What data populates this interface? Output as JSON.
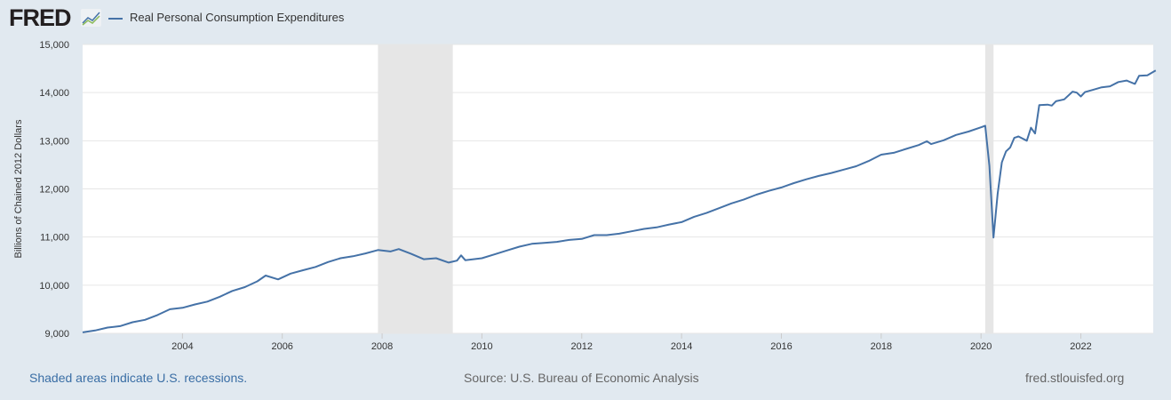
{
  "header": {
    "logo": "FRED",
    "legend_label": "Real Personal Consumption Expenditures"
  },
  "footer": {
    "recession_note": "Shaded areas indicate U.S. recessions.",
    "source": "Source: U.S. Bureau of Economic Analysis",
    "site": "fred.stlouisfed.org"
  },
  "colors": {
    "line": "#4572a7",
    "recession": "#e6e6e6",
    "background": "#e1e9f0"
  },
  "chart_data": {
    "type": "line",
    "title": "Real Personal Consumption Expenditures",
    "ylabel": "Billions of Chained 2012 Dollars",
    "xlabel": "",
    "ylim": [
      9000,
      15000
    ],
    "xlim": [
      2002.0,
      2023.45
    ],
    "yticks": [
      9000,
      10000,
      11000,
      12000,
      13000,
      14000,
      15000
    ],
    "ytick_labels": [
      "9,000",
      "10,000",
      "11,000",
      "12,000",
      "13,000",
      "14,000",
      "15,000"
    ],
    "xticks": [
      2004,
      2006,
      2008,
      2010,
      2012,
      2014,
      2016,
      2018,
      2020,
      2022
    ],
    "xtick_labels": [
      "2004",
      "2006",
      "2008",
      "2010",
      "2012",
      "2014",
      "2016",
      "2018",
      "2020",
      "2022"
    ],
    "grid": true,
    "recessions": [
      [
        "2007-12",
        "2009-06"
      ],
      [
        "2020-02",
        "2020-04"
      ]
    ],
    "series": [
      {
        "name": "Real Personal Consumption Expenditures",
        "points": [
          [
            "2002-01",
            9020
          ],
          [
            "2002-04",
            9060
          ],
          [
            "2002-07",
            9120
          ],
          [
            "2002-10",
            9150
          ],
          [
            "2003-01",
            9230
          ],
          [
            "2003-04",
            9280
          ],
          [
            "2003-07",
            9380
          ],
          [
            "2003-10",
            9500
          ],
          [
            "2004-01",
            9530
          ],
          [
            "2004-04",
            9600
          ],
          [
            "2004-07",
            9660
          ],
          [
            "2004-10",
            9760
          ],
          [
            "2005-01",
            9880
          ],
          [
            "2005-04",
            9960
          ],
          [
            "2005-07",
            10080
          ],
          [
            "2005-09",
            10200
          ],
          [
            "2005-12",
            10120
          ],
          [
            "2006-03",
            10240
          ],
          [
            "2006-06",
            10310
          ],
          [
            "2006-09",
            10380
          ],
          [
            "2006-12",
            10480
          ],
          [
            "2007-03",
            10560
          ],
          [
            "2007-06",
            10600
          ],
          [
            "2007-09",
            10660
          ],
          [
            "2007-12",
            10730
          ],
          [
            "2008-03",
            10700
          ],
          [
            "2008-05",
            10750
          ],
          [
            "2008-08",
            10650
          ],
          [
            "2008-11",
            10540
          ],
          [
            "2009-02",
            10560
          ],
          [
            "2009-05",
            10470
          ],
          [
            "2009-07",
            10510
          ],
          [
            "2009-08",
            10620
          ],
          [
            "2009-09",
            10520
          ],
          [
            "2010-01",
            10560
          ],
          [
            "2010-04",
            10640
          ],
          [
            "2010-07",
            10720
          ],
          [
            "2010-10",
            10800
          ],
          [
            "2011-01",
            10860
          ],
          [
            "2011-04",
            10880
          ],
          [
            "2011-07",
            10900
          ],
          [
            "2011-10",
            10940
          ],
          [
            "2012-01",
            10960
          ],
          [
            "2012-04",
            11040
          ],
          [
            "2012-07",
            11040
          ],
          [
            "2012-10",
            11070
          ],
          [
            "2013-01",
            11120
          ],
          [
            "2013-04",
            11170
          ],
          [
            "2013-07",
            11200
          ],
          [
            "2013-10",
            11260
          ],
          [
            "2014-01",
            11310
          ],
          [
            "2014-04",
            11420
          ],
          [
            "2014-07",
            11500
          ],
          [
            "2014-10",
            11600
          ],
          [
            "2015-01",
            11700
          ],
          [
            "2015-04",
            11780
          ],
          [
            "2015-07",
            11880
          ],
          [
            "2015-10",
            11960
          ],
          [
            "2016-01",
            12030
          ],
          [
            "2016-04",
            12120
          ],
          [
            "2016-07",
            12200
          ],
          [
            "2016-10",
            12270
          ],
          [
            "2017-01",
            12330
          ],
          [
            "2017-04",
            12400
          ],
          [
            "2017-07",
            12470
          ],
          [
            "2017-10",
            12580
          ],
          [
            "2018-01",
            12710
          ],
          [
            "2018-04",
            12750
          ],
          [
            "2018-07",
            12830
          ],
          [
            "2018-10",
            12910
          ],
          [
            "2018-12",
            12990
          ],
          [
            "2019-01",
            12930
          ],
          [
            "2019-04",
            13010
          ],
          [
            "2019-07",
            13120
          ],
          [
            "2019-10",
            13190
          ],
          [
            "2020-01",
            13280
          ],
          [
            "2020-02",
            13310
          ],
          [
            "2020-03",
            12480
          ],
          [
            "2020-04",
            10990
          ],
          [
            "2020-05",
            11900
          ],
          [
            "2020-06",
            12550
          ],
          [
            "2020-07",
            12780
          ],
          [
            "2020-08",
            12860
          ],
          [
            "2020-09",
            13060
          ],
          [
            "2020-10",
            13090
          ],
          [
            "2020-12",
            13000
          ],
          [
            "2021-01",
            13270
          ],
          [
            "2021-02",
            13150
          ],
          [
            "2021-03",
            13740
          ],
          [
            "2021-05",
            13750
          ],
          [
            "2021-06",
            13730
          ],
          [
            "2021-07",
            13820
          ],
          [
            "2021-09",
            13860
          ],
          [
            "2021-11",
            14020
          ],
          [
            "2021-12",
            14000
          ],
          [
            "2022-01",
            13920
          ],
          [
            "2022-02",
            14010
          ],
          [
            "2022-04",
            14060
          ],
          [
            "2022-06",
            14110
          ],
          [
            "2022-08",
            14130
          ],
          [
            "2022-10",
            14220
          ],
          [
            "2022-12",
            14250
          ],
          [
            "2023-02",
            14180
          ],
          [
            "2023-03",
            14350
          ],
          [
            "2023-05",
            14360
          ],
          [
            "2023-06",
            14410
          ],
          [
            "2023-07",
            14460
          ]
        ]
      }
    ]
  }
}
